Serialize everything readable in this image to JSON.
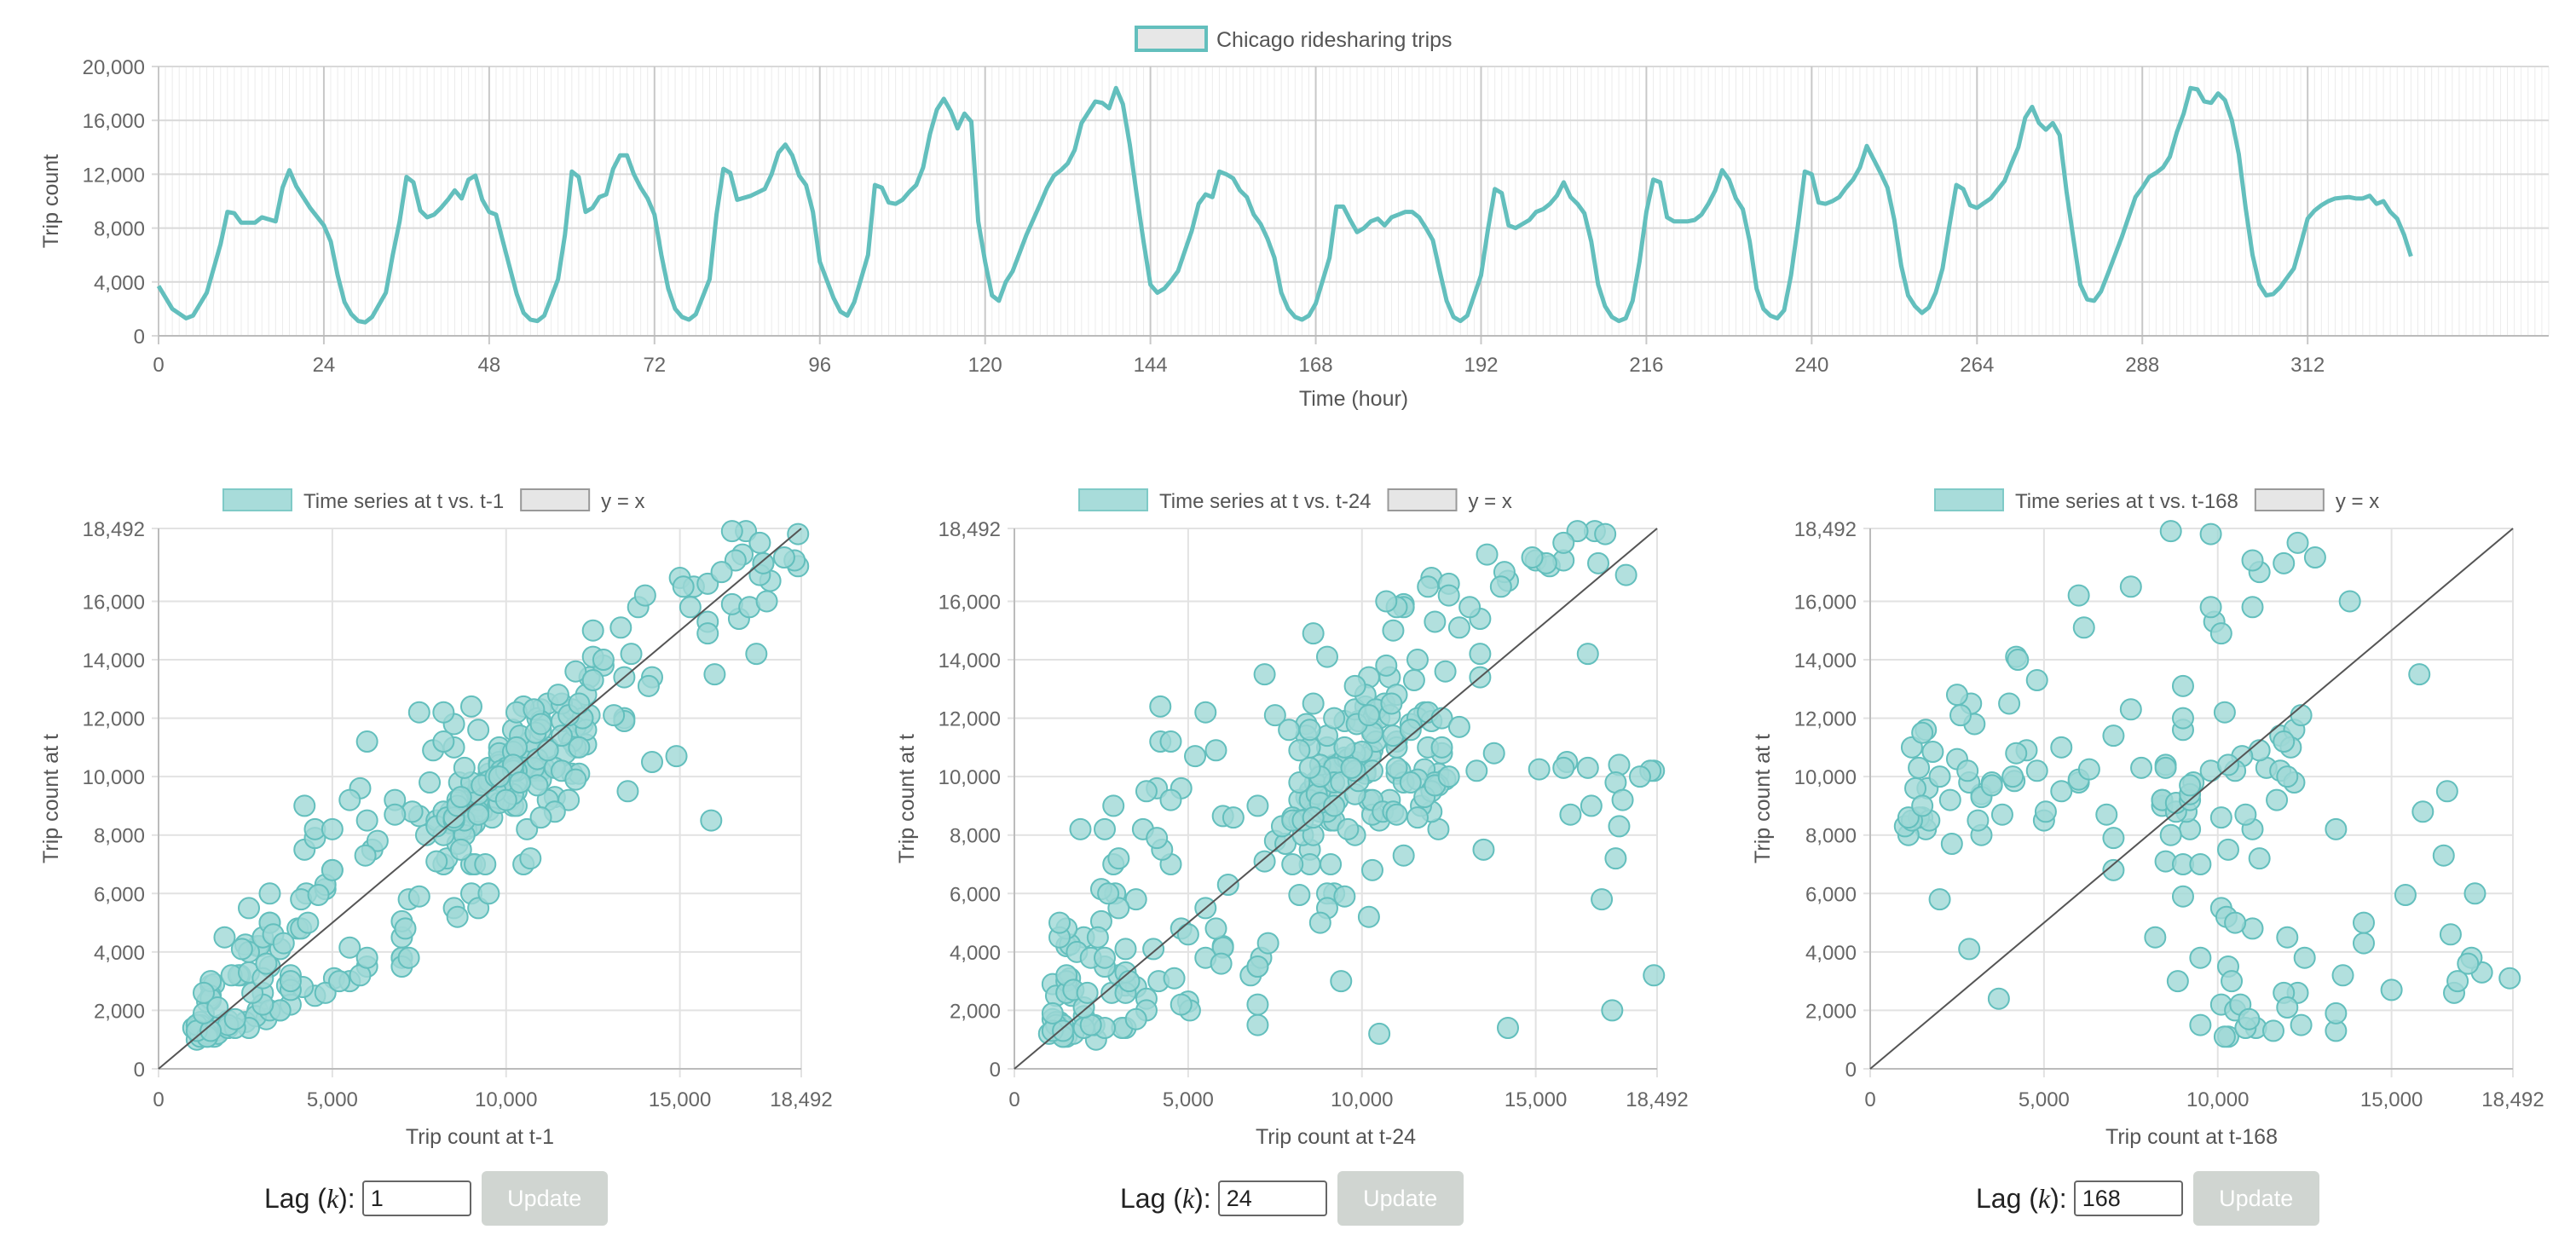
{
  "chart_data": [
    {
      "type": "line",
      "legend": "Chicago ridesharing trips",
      "xlabel": "Time (hour)",
      "ylabel": "Trip count",
      "xlim": [
        0,
        347
      ],
      "ylim": [
        0,
        20000
      ],
      "x_ticks": [
        0,
        24,
        48,
        72,
        96,
        120,
        144,
        168,
        192,
        216,
        240,
        264,
        288,
        312
      ],
      "y_ticks": [
        0,
        4000,
        8000,
        12000,
        16000,
        20000
      ],
      "x_tick_labels": [
        "0",
        "24",
        "48",
        "72",
        "96",
        "120",
        "144",
        "168",
        "192",
        "216",
        "240",
        "264",
        "288",
        "312"
      ],
      "y_tick_labels": [
        "0",
        "4,000",
        "8,000",
        "12,000",
        "16,000",
        "20,000"
      ],
      "color": "#63bfbd",
      "keypoints": [
        [
          0,
          3700
        ],
        [
          2,
          2000
        ],
        [
          4,
          1300
        ],
        [
          5,
          1500
        ],
        [
          7,
          3200
        ],
        [
          9,
          6800
        ],
        [
          10,
          9200
        ],
        [
          11,
          9100
        ],
        [
          12,
          8400
        ],
        [
          14,
          8400
        ],
        [
          15,
          8800
        ],
        [
          17,
          8500
        ],
        [
          18,
          11000
        ],
        [
          19,
          12300
        ],
        [
          20,
          11100
        ],
        [
          22,
          9500
        ],
        [
          24,
          8200
        ],
        [
          25,
          7000
        ],
        [
          26,
          4500
        ],
        [
          27,
          2500
        ],
        [
          28,
          1600
        ],
        [
          29,
          1100
        ],
        [
          30,
          1000
        ],
        [
          31,
          1400
        ],
        [
          33,
          3200
        ],
        [
          34,
          6000
        ],
        [
          35,
          8500
        ],
        [
          36,
          11800
        ],
        [
          37,
          11400
        ],
        [
          38,
          9300
        ],
        [
          39,
          8800
        ],
        [
          40,
          9000
        ],
        [
          41,
          9500
        ],
        [
          42,
          10100
        ],
        [
          43,
          10800
        ],
        [
          44,
          10200
        ],
        [
          45,
          11600
        ],
        [
          46,
          11900
        ],
        [
          47,
          10100
        ],
        [
          48,
          9200
        ],
        [
          49,
          9000
        ],
        [
          50,
          7000
        ],
        [
          52,
          3100
        ],
        [
          53,
          1700
        ],
        [
          54,
          1200
        ],
        [
          55,
          1100
        ],
        [
          56,
          1500
        ],
        [
          58,
          4200
        ],
        [
          59,
          7500
        ],
        [
          60,
          12200
        ],
        [
          61,
          11800
        ],
        [
          62,
          9200
        ],
        [
          63,
          9500
        ],
        [
          64,
          10300
        ],
        [
          65,
          10500
        ],
        [
          66,
          12400
        ],
        [
          67,
          13400
        ],
        [
          68,
          13400
        ],
        [
          69,
          12000
        ],
        [
          70,
          11000
        ],
        [
          71,
          10200
        ],
        [
          72,
          9000
        ],
        [
          73,
          6000
        ],
        [
          74,
          3500
        ],
        [
          75,
          2000
        ],
        [
          76,
          1400
        ],
        [
          77,
          1200
        ],
        [
          78,
          1600
        ],
        [
          80,
          4200
        ],
        [
          81,
          9000
        ],
        [
          82,
          12400
        ],
        [
          83,
          12100
        ],
        [
          84,
          10100
        ],
        [
          86,
          10400
        ],
        [
          88,
          10900
        ],
        [
          89,
          12000
        ],
        [
          90,
          13600
        ],
        [
          91,
          14200
        ],
        [
          92,
          13400
        ],
        [
          93,
          11900
        ],
        [
          94,
          11200
        ],
        [
          95,
          9200
        ],
        [
          96,
          5500
        ],
        [
          98,
          2800
        ],
        [
          99,
          1800
        ],
        [
          100,
          1500
        ],
        [
          101,
          2500
        ],
        [
          103,
          6000
        ],
        [
          104,
          11200
        ],
        [
          105,
          11000
        ],
        [
          106,
          9900
        ],
        [
          107,
          9800
        ],
        [
          108,
          10100
        ],
        [
          109,
          10700
        ],
        [
          110,
          11200
        ],
        [
          111,
          12500
        ],
        [
          112,
          15000
        ],
        [
          113,
          16800
        ],
        [
          114,
          17600
        ],
        [
          115,
          16700
        ],
        [
          116,
          15400
        ],
        [
          117,
          16500
        ],
        [
          118,
          15900
        ],
        [
          119,
          8500
        ],
        [
          120,
          5500
        ],
        [
          121,
          3000
        ],
        [
          122,
          2600
        ],
        [
          123,
          4000
        ],
        [
          124,
          4800
        ],
        [
          126,
          7500
        ],
        [
          128,
          9800
        ],
        [
          129,
          11000
        ],
        [
          130,
          11900
        ],
        [
          131,
          12300
        ],
        [
          132,
          12800
        ],
        [
          133,
          13800
        ],
        [
          134,
          15800
        ],
        [
          135,
          16600
        ],
        [
          136,
          17400
        ],
        [
          137,
          17300
        ],
        [
          138,
          16900
        ],
        [
          139,
          18400
        ],
        [
          140,
          17200
        ],
        [
          141,
          14200
        ],
        [
          142,
          10500
        ],
        [
          143,
          7000
        ],
        [
          144,
          3800
        ],
        [
          145,
          3200
        ],
        [
          146,
          3500
        ],
        [
          147,
          4100
        ],
        [
          148,
          4800
        ],
        [
          150,
          7800
        ],
        [
          151,
          9800
        ],
        [
          152,
          10500
        ],
        [
          153,
          10300
        ],
        [
          154,
          12200
        ],
        [
          155,
          12000
        ],
        [
          156,
          11700
        ],
        [
          157,
          10800
        ],
        [
          158,
          10300
        ],
        [
          159,
          9000
        ],
        [
          160,
          8300
        ],
        [
          161,
          7200
        ],
        [
          162,
          5800
        ],
        [
          163,
          3200
        ],
        [
          164,
          2000
        ],
        [
          165,
          1400
        ],
        [
          166,
          1200
        ],
        [
          167,
          1500
        ],
        [
          168,
          2400
        ],
        [
          170,
          5800
        ],
        [
          171,
          9600
        ],
        [
          172,
          9600
        ],
        [
          173,
          8600
        ],
        [
          174,
          7700
        ],
        [
          175,
          8000
        ],
        [
          176,
          8500
        ],
        [
          177,
          8700
        ],
        [
          178,
          8200
        ],
        [
          179,
          8800
        ],
        [
          181,
          9200
        ],
        [
          182,
          9200
        ],
        [
          183,
          8800
        ],
        [
          184,
          8000
        ],
        [
          185,
          7100
        ],
        [
          186,
          4800
        ],
        [
          187,
          2600
        ],
        [
          188,
          1400
        ],
        [
          189,
          1100
        ],
        [
          190,
          1500
        ],
        [
          192,
          4500
        ],
        [
          193,
          7900
        ],
        [
          194,
          10900
        ],
        [
          195,
          10600
        ],
        [
          196,
          8200
        ],
        [
          197,
          8000
        ],
        [
          198,
          8300
        ],
        [
          199,
          8600
        ],
        [
          200,
          9200
        ],
        [
          201,
          9400
        ],
        [
          202,
          9800
        ],
        [
          203,
          10400
        ],
        [
          204,
          11400
        ],
        [
          205,
          10300
        ],
        [
          206,
          9800
        ],
        [
          207,
          9100
        ],
        [
          208,
          7000
        ],
        [
          209,
          3800
        ],
        [
          210,
          2200
        ],
        [
          211,
          1400
        ],
        [
          212,
          1100
        ],
        [
          213,
          1300
        ],
        [
          214,
          2600
        ],
        [
          215,
          5500
        ],
        [
          216,
          9200
        ],
        [
          217,
          11600
        ],
        [
          218,
          11400
        ],
        [
          219,
          8800
        ],
        [
          220,
          8500
        ],
        [
          221,
          8500
        ],
        [
          222,
          8500
        ],
        [
          223,
          8600
        ],
        [
          224,
          9000
        ],
        [
          225,
          9800
        ],
        [
          226,
          10800
        ],
        [
          227,
          12300
        ],
        [
          228,
          11600
        ],
        [
          229,
          10200
        ],
        [
          230,
          9400
        ],
        [
          231,
          7000
        ],
        [
          232,
          3500
        ],
        [
          233,
          2000
        ],
        [
          234,
          1500
        ],
        [
          235,
          1300
        ],
        [
          236,
          1900
        ],
        [
          237,
          4500
        ],
        [
          238,
          8200
        ],
        [
          239,
          12200
        ],
        [
          240,
          12000
        ],
        [
          241,
          9900
        ],
        [
          242,
          9800
        ],
        [
          243,
          10000
        ],
        [
          244,
          10300
        ],
        [
          245,
          11000
        ],
        [
          246,
          11600
        ],
        [
          247,
          12500
        ],
        [
          248,
          14100
        ],
        [
          249,
          13100
        ],
        [
          250,
          12100
        ],
        [
          251,
          11000
        ],
        [
          252,
          8600
        ],
        [
          253,
          5200
        ],
        [
          254,
          3000
        ],
        [
          255,
          2200
        ],
        [
          256,
          1700
        ],
        [
          257,
          2100
        ],
        [
          258,
          3200
        ],
        [
          259,
          5000
        ],
        [
          260,
          8200
        ],
        [
          261,
          11200
        ],
        [
          262,
          10900
        ],
        [
          263,
          9700
        ],
        [
          264,
          9500
        ],
        [
          266,
          10200
        ],
        [
          268,
          11500
        ],
        [
          269,
          12800
        ],
        [
          270,
          14000
        ],
        [
          271,
          16200
        ],
        [
          272,
          17000
        ],
        [
          273,
          15800
        ],
        [
          274,
          15300
        ],
        [
          275,
          15800
        ],
        [
          276,
          14900
        ],
        [
          277,
          10700
        ],
        [
          278,
          7200
        ],
        [
          279,
          3800
        ],
        [
          280,
          2700
        ],
        [
          281,
          2600
        ],
        [
          282,
          3300
        ],
        [
          283,
          4600
        ],
        [
          285,
          7300
        ],
        [
          287,
          10300
        ],
        [
          288,
          11000
        ],
        [
          289,
          11800
        ],
        [
          290,
          12100
        ],
        [
          291,
          12500
        ],
        [
          292,
          13300
        ],
        [
          293,
          15100
        ],
        [
          294,
          16500
        ],
        [
          295,
          18400
        ],
        [
          296,
          18300
        ],
        [
          297,
          17400
        ],
        [
          298,
          17300
        ],
        [
          299,
          18000
        ],
        [
          300,
          17500
        ],
        [
          301,
          16000
        ],
        [
          302,
          13500
        ],
        [
          303,
          9500
        ],
        [
          304,
          6000
        ],
        [
          305,
          3800
        ],
        [
          306,
          3000
        ],
        [
          307,
          3100
        ],
        [
          308,
          3600
        ],
        [
          309,
          4300
        ],
        [
          310,
          5000
        ],
        [
          311,
          6800
        ],
        [
          312,
          8700
        ],
        [
          313,
          9300
        ],
        [
          314,
          9700
        ],
        [
          315,
          10000
        ],
        [
          316,
          10200
        ],
        [
          318,
          10300
        ],
        [
          319,
          10200
        ],
        [
          320,
          10200
        ],
        [
          321,
          10400
        ],
        [
          322,
          9800
        ],
        [
          323,
          10000
        ],
        [
          324,
          9200
        ],
        [
          325,
          8700
        ],
        [
          326,
          7500
        ],
        [
          327,
          5900
        ]
      ]
    },
    {
      "type": "scatter",
      "lag": 1,
      "legend": [
        "Time series at t vs. t-1",
        "y = x"
      ],
      "xlabel": "Trip count at t-1",
      "ylabel": "Trip count at t",
      "xlim": [
        0,
        18492
      ],
      "ylim": [
        0,
        18492
      ],
      "x_ticks": [
        0,
        5000,
        10000,
        15000,
        18492
      ],
      "y_ticks": [
        0,
        2000,
        4000,
        6000,
        8000,
        10000,
        12000,
        14000,
        16000,
        18492
      ],
      "x_tick_labels": [
        "0",
        "5,000",
        "10,000",
        "15,000",
        "18,492"
      ],
      "y_tick_labels": [
        "0",
        "2,000",
        "4,000",
        "6,000",
        "8,000",
        "10,000",
        "12,000",
        "14,000",
        "16,000",
        "18,492"
      ],
      "point_color": "#9fd8d6",
      "point_border": "#63bfbd"
    },
    {
      "type": "scatter",
      "lag": 24,
      "legend": [
        "Time series at t vs. t-24",
        "y = x"
      ],
      "xlabel": "Trip count at t-24",
      "ylabel": "Trip count at t",
      "xlim": [
        0,
        18492
      ],
      "ylim": [
        0,
        18492
      ],
      "x_ticks": [
        0,
        5000,
        10000,
        15000,
        18492
      ],
      "y_ticks": [
        0,
        2000,
        4000,
        6000,
        8000,
        10000,
        12000,
        14000,
        16000,
        18492
      ],
      "x_tick_labels": [
        "0",
        "5,000",
        "10,000",
        "15,000",
        "18,492"
      ],
      "y_tick_labels": [
        "0",
        "2,000",
        "4,000",
        "6,000",
        "8,000",
        "10,000",
        "12,000",
        "14,000",
        "16,000",
        "18,492"
      ],
      "point_color": "#9fd8d6",
      "point_border": "#63bfbd"
    },
    {
      "type": "scatter",
      "lag": 168,
      "legend": [
        "Time series at t vs. t-168",
        "y = x"
      ],
      "xlabel": "Trip count at t-168",
      "ylabel": "Trip count at t",
      "xlim": [
        0,
        18492
      ],
      "ylim": [
        0,
        18492
      ],
      "x_ticks": [
        0,
        5000,
        10000,
        15000,
        18492
      ],
      "y_ticks": [
        0,
        2000,
        4000,
        6000,
        8000,
        10000,
        12000,
        14000,
        16000,
        18492
      ],
      "x_tick_labels": [
        "0",
        "5,000",
        "10,000",
        "15,000",
        "18,492"
      ],
      "y_tick_labels": [
        "0",
        "2,000",
        "4,000",
        "6,000",
        "8,000",
        "10,000",
        "12,000",
        "14,000",
        "16,000",
        "18,492"
      ],
      "point_color": "#9fd8d6",
      "point_border": "#63bfbd"
    }
  ],
  "controls": [
    {
      "label_prefix": "Lag (",
      "label_var": "k",
      "label_suffix": "):",
      "value": "1",
      "button": "Update"
    },
    {
      "label_prefix": "Lag (",
      "label_var": "k",
      "label_suffix": "):",
      "value": "24",
      "button": "Update"
    },
    {
      "label_prefix": "Lag (",
      "label_var": "k",
      "label_suffix": "):",
      "value": "168",
      "button": "Update"
    }
  ]
}
